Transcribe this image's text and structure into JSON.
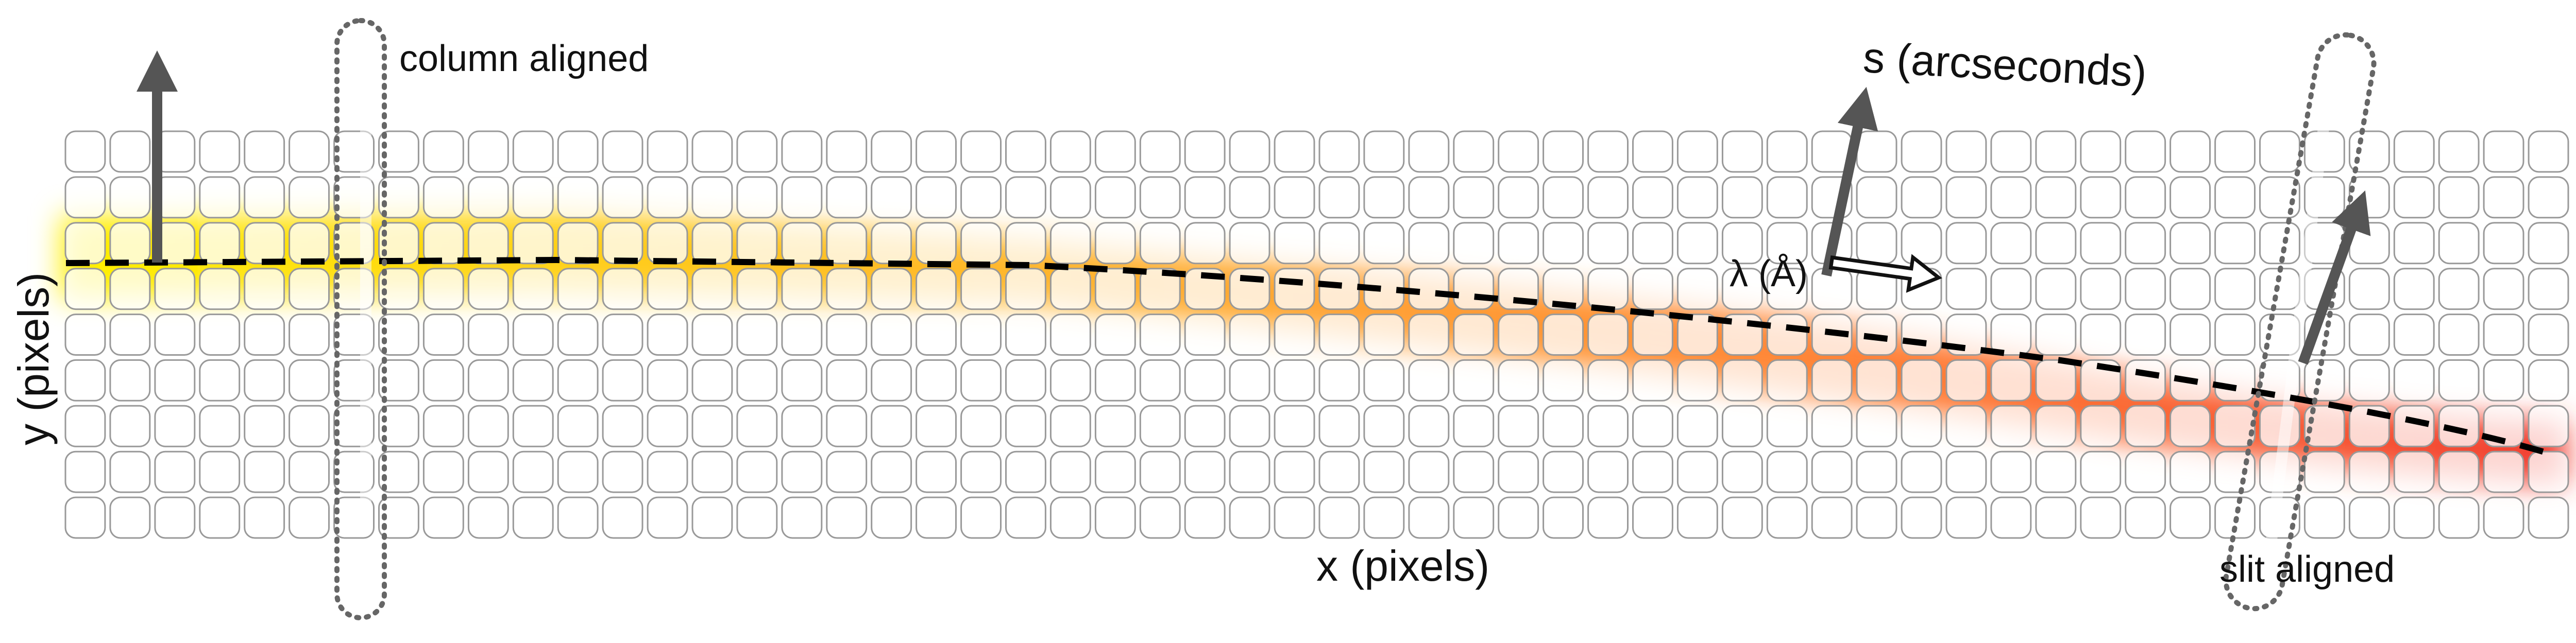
{
  "figure": {
    "labels": {
      "column_aligned": "column aligned",
      "s_axis": "s (arcseconds)",
      "lambda_axis": "λ (Å)",
      "y_axis": "y (pixels)",
      "x_axis": "x (pixels)",
      "slit_aligned": "slit aligned"
    },
    "grid": {
      "columns": 56,
      "rows": 9
    },
    "trace_gradient_colors": [
      "#fff000",
      "#ffc81e",
      "#ffa535",
      "#ff7d38",
      "#f13d31"
    ],
    "colors": {
      "grid_line": "#999999",
      "arrow": "#555555",
      "trace": "#000000",
      "aperture_outline": "#666666"
    }
  }
}
